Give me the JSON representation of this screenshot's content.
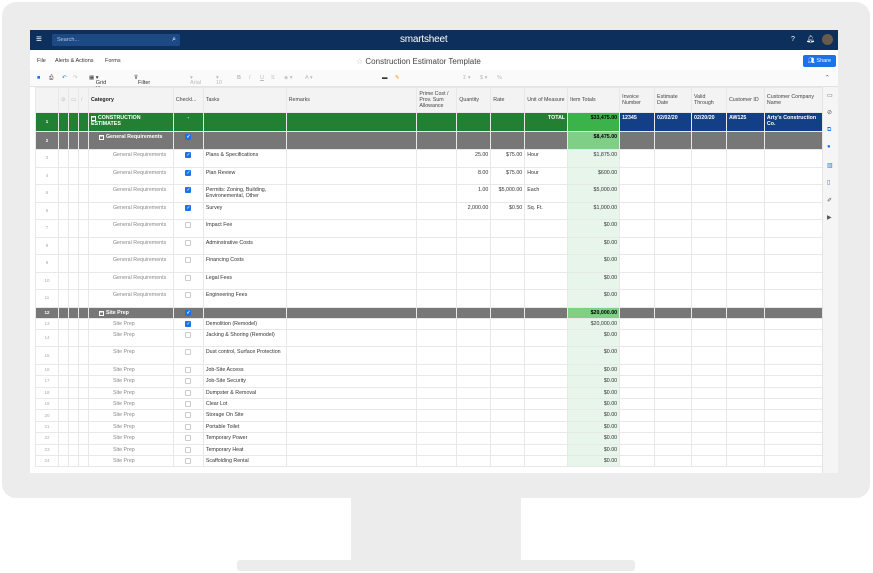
{
  "app": {
    "brand": "smartsheet",
    "search_placeholder": "Search...",
    "sheet_title": "Construction Estimator Template",
    "share_label": "Share"
  },
  "menu": [
    "File",
    "Alerts & Actions",
    "Forms"
  ],
  "toolbar": {
    "grid_view": "Grid View",
    "filter": "Filter",
    "font": "Arial",
    "size": "10"
  },
  "columns": [
    "Category",
    "Checkl...",
    "Tasks",
    "Remarks",
    "Prime Cost / Prov. Sum Allowance",
    "Quantity",
    "Rate",
    "Unit of Measure",
    "Item Totals",
    "Invoice Number",
    "Estimate Date",
    "Valid Through",
    "Customer ID",
    "Customer Company Name"
  ],
  "colors": {
    "topbar": "#0c2f5c",
    "project_row": "#237f32",
    "section_row": "#777777",
    "total_cell": "#3cb34a",
    "customer_cells": "#133f86",
    "accent": "#1a73e8"
  },
  "rows": [
    {
      "n": "1",
      "type": "project",
      "category": "CONSTRUCTION ESTIMATES",
      "checked": null,
      "check_text": "-",
      "task": "",
      "unit": "TOTAL",
      "total": "$33,475.00",
      "invoice": "12345",
      "estimate_date": "02/02/20",
      "valid_through": "02/20/20",
      "customer_id": "AW125",
      "company": "Arty's Construction Co."
    },
    {
      "n": "2",
      "type": "section",
      "category": "General Requirements",
      "checked": true,
      "total": "$8,475.00"
    },
    {
      "n": "3",
      "category": "General Requirements",
      "checked": true,
      "task": "Plans & Specifications",
      "qty": "25.00",
      "rate": "$75.00",
      "unit": "Hour",
      "total": "$1,875.00"
    },
    {
      "n": "4",
      "category": "General Requirements",
      "checked": true,
      "task": "Plan Review",
      "qty": "8.00",
      "rate": "$75.00",
      "unit": "Hour",
      "total": "$600.00"
    },
    {
      "n": "5",
      "category": "General Requirements",
      "checked": true,
      "task": "Permits: Zoning, Building, Environemental, Other",
      "qty": "1.00",
      "rate": "$5,000.00",
      "unit": "Each",
      "total": "$5,000.00"
    },
    {
      "n": "6",
      "category": "General Requirements",
      "checked": true,
      "task": "Survey",
      "qty": "2,000.00",
      "rate": "$0.50",
      "unit": "Sq. Ft.",
      "total": "$1,000.00"
    },
    {
      "n": "7",
      "category": "General Requirements",
      "checked": false,
      "task": "Impact Fee",
      "total": "$0.00"
    },
    {
      "n": "8",
      "category": "General Requirements",
      "checked": false,
      "task": "Adminstrative Costs",
      "total": "$0.00"
    },
    {
      "n": "9",
      "category": "General Requirements",
      "checked": false,
      "task": "Financing Costs",
      "total": "$0.00"
    },
    {
      "n": "10",
      "category": "General Requirements",
      "checked": false,
      "task": "Legal Fees",
      "total": "$0.00"
    },
    {
      "n": "11",
      "category": "General Requirements",
      "checked": false,
      "task": "Engineering Fees",
      "total": "$0.00"
    },
    {
      "n": "12",
      "type": "section",
      "category": "Site Prep",
      "checked": true,
      "total": "$20,000.00"
    },
    {
      "n": "13",
      "category": "Site Prep",
      "checked": true,
      "task": "Demolition (Remodel)",
      "total": "$20,000.00"
    },
    {
      "n": "14",
      "category": "Site Prep",
      "checked": false,
      "task": "Jacking & Shoring (Remodel)",
      "total": "$0.00"
    },
    {
      "n": "15",
      "category": "Site Prep",
      "checked": false,
      "task": "Dust control, Surface Protection",
      "total": "$0.00"
    },
    {
      "n": "16",
      "category": "Site Prep",
      "checked": false,
      "task": "Job-Site Access",
      "total": "$0.00"
    },
    {
      "n": "17",
      "category": "Site Prep",
      "checked": false,
      "task": "Job-Site Security",
      "total": "$0.00"
    },
    {
      "n": "18",
      "category": "Site Prep",
      "checked": false,
      "task": "Dumpster & Removal",
      "total": "$0.00"
    },
    {
      "n": "19",
      "category": "Site Prep",
      "checked": false,
      "task": "Clear Lot",
      "total": "$0.00"
    },
    {
      "n": "20",
      "category": "Site Prep",
      "checked": false,
      "task": "Storage On Site",
      "total": "$0.00"
    },
    {
      "n": "21",
      "category": "Site Prep",
      "checked": false,
      "task": "Portable Toilet",
      "total": "$0.00"
    },
    {
      "n": "22",
      "category": "Site Prep",
      "checked": false,
      "task": "Temporary Power",
      "total": "$0.00"
    },
    {
      "n": "23",
      "category": "Site Prep",
      "checked": false,
      "task": "Temporary Heat",
      "total": "$0.00"
    },
    {
      "n": "24",
      "category": "Site Prep",
      "checked": false,
      "task": "Scaffolding Rental",
      "total": "$0.00"
    }
  ]
}
